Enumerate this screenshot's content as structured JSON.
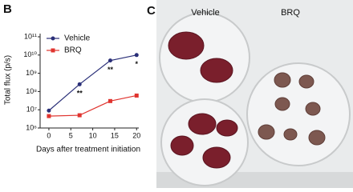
{
  "chart_data": {
    "type": "line",
    "panel": "B",
    "ylabel": "Total flux (p/s)",
    "xlabel": "Days after treatment initiation",
    "log_y": true,
    "xlim": [
      -2,
      20.5
    ],
    "xticks": [
      0,
      5,
      10,
      15,
      20
    ],
    "ylim": [
      1000000,
      100000000000
    ],
    "yticks": [
      {
        "value": 1000000,
        "label": "10⁶"
      },
      {
        "value": 10000000,
        "label": "10⁷"
      },
      {
        "value": 100000000,
        "label": "10⁸"
      },
      {
        "value": 1000000000,
        "label": "10⁹"
      },
      {
        "value": 10000000000,
        "label": "10¹⁰"
      },
      {
        "value": 100000000000,
        "label": "10¹¹"
      }
    ],
    "legend": "upper left",
    "series": [
      {
        "name": "Vehicle",
        "color": "#2a2f78",
        "marker": "circle",
        "x": [
          0,
          7,
          14,
          20
        ],
        "values": [
          9000000,
          250000000,
          5000000000,
          10000000000
        ]
      },
      {
        "name": "BRQ",
        "color": "#e0342f",
        "marker": "square",
        "x": [
          0,
          7,
          14,
          20
        ],
        "values": [
          4500000,
          5000000,
          30000000,
          60000000
        ]
      }
    ],
    "annotations": [
      {
        "text": "**",
        "x": 7
      },
      {
        "text": "**",
        "x": 14
      },
      {
        "text": "*",
        "x": 20
      }
    ]
  },
  "photo": {
    "panel": "C",
    "labels": [
      "Vehicle",
      "BRQ"
    ]
  }
}
